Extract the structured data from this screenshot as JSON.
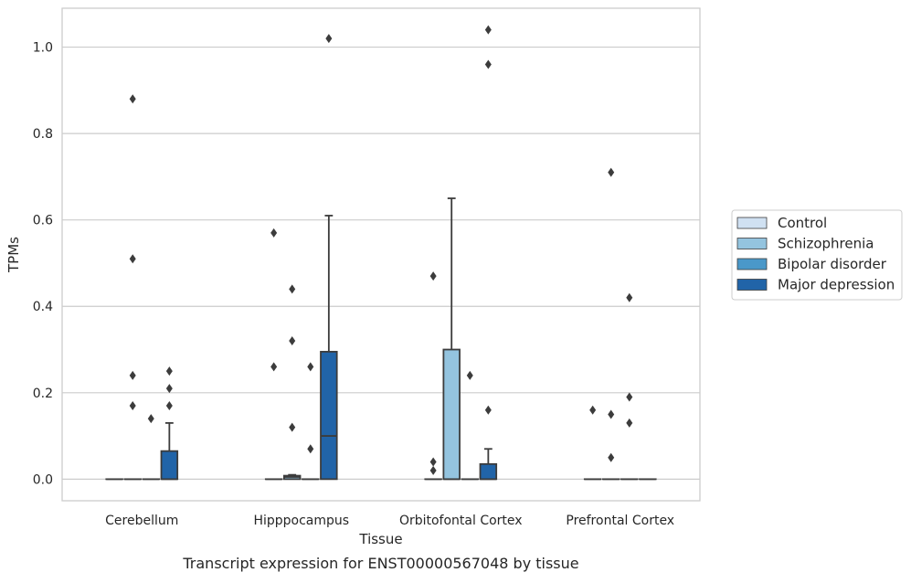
{
  "chart_data": {
    "type": "box",
    "title": "",
    "caption": "Transcript expression for ENST00000567048 by tissue",
    "xlabel": "Tissue",
    "ylabel": "TPMs",
    "ylim": [
      -0.05,
      1.09
    ],
    "yticks": [
      "0.0",
      "0.2",
      "0.4",
      "0.6",
      "0.8",
      "1.0"
    ],
    "grid": "horizontal",
    "legend_position": "right",
    "categories": [
      "Cerebellum",
      "Hipppocampus",
      "Orbitofontal Cortex",
      "Prefrontal Cortex"
    ],
    "series": [
      {
        "name": "Control",
        "color": "#d0e1f2"
      },
      {
        "name": "Schizophrenia",
        "color": "#94c4df"
      },
      {
        "name": "Bipolar disorder",
        "color": "#4a98c9"
      },
      {
        "name": "Major depression",
        "color": "#2164a8"
      }
    ],
    "boxes": [
      {
        "category": "Cerebellum",
        "series": "Control",
        "min": 0,
        "q1": 0,
        "median": 0,
        "q3": 0,
        "max": 0,
        "outliers": []
      },
      {
        "category": "Cerebellum",
        "series": "Schizophrenia",
        "min": 0,
        "q1": 0,
        "median": 0,
        "q3": 0,
        "max": 0,
        "outliers": [
          0.17,
          0.24,
          0.51,
          0.88
        ]
      },
      {
        "category": "Cerebellum",
        "series": "Bipolar disorder",
        "min": 0,
        "q1": 0,
        "median": 0,
        "q3": 0,
        "max": 0,
        "outliers": [
          0.14
        ]
      },
      {
        "category": "Cerebellum",
        "series": "Major depression",
        "min": 0,
        "q1": 0,
        "median": 0,
        "q3": 0.065,
        "max": 0.13,
        "outliers": [
          0.17,
          0.21,
          0.25
        ]
      },
      {
        "category": "Hipppocampus",
        "series": "Control",
        "min": 0,
        "q1": 0,
        "median": 0,
        "q3": 0,
        "max": 0,
        "outliers": [
          0.26,
          0.57
        ]
      },
      {
        "category": "Hipppocampus",
        "series": "Schizophrenia",
        "min": 0,
        "q1": 0,
        "median": 0.005,
        "q3": 0.008,
        "max": 0.01,
        "outliers": [
          0.12,
          0.32,
          0.44
        ]
      },
      {
        "category": "Hipppocampus",
        "series": "Bipolar disorder",
        "min": 0,
        "q1": 0,
        "median": 0,
        "q3": 0,
        "max": 0,
        "outliers": [
          0.07,
          0.26
        ]
      },
      {
        "category": "Hipppocampus",
        "series": "Major depression",
        "min": 0,
        "q1": 0,
        "median": 0.1,
        "q3": 0.295,
        "max": 0.61,
        "outliers": [
          1.02
        ]
      },
      {
        "category": "Orbitofontal Cortex",
        "series": "Control",
        "min": 0,
        "q1": 0,
        "median": 0,
        "q3": 0,
        "max": 0,
        "outliers": [
          0.02,
          0.04,
          0.47
        ]
      },
      {
        "category": "Orbitofontal Cortex",
        "series": "Schizophrenia",
        "min": 0,
        "q1": 0,
        "median": 0,
        "q3": 0.3,
        "max": 0.65,
        "outliers": []
      },
      {
        "category": "Orbitofontal Cortex",
        "series": "Bipolar disorder",
        "min": 0,
        "q1": 0,
        "median": 0,
        "q3": 0,
        "max": 0,
        "outliers": [
          0.24
        ]
      },
      {
        "category": "Orbitofontal Cortex",
        "series": "Major depression",
        "min": 0,
        "q1": 0,
        "median": 0,
        "q3": 0.035,
        "max": 0.07,
        "outliers": [
          0.16,
          0.96,
          1.04
        ]
      },
      {
        "category": "Prefrontal Cortex",
        "series": "Control",
        "min": 0,
        "q1": 0,
        "median": 0,
        "q3": 0,
        "max": 0,
        "outliers": [
          0.16
        ]
      },
      {
        "category": "Prefrontal Cortex",
        "series": "Schizophrenia",
        "min": 0,
        "q1": 0,
        "median": 0,
        "q3": 0,
        "max": 0,
        "outliers": [
          0.05,
          0.15,
          0.71
        ]
      },
      {
        "category": "Prefrontal Cortex",
        "series": "Bipolar disorder",
        "min": 0,
        "q1": 0,
        "median": 0,
        "q3": 0,
        "max": 0,
        "outliers": [
          0.13,
          0.19,
          0.42
        ]
      },
      {
        "category": "Prefrontal Cortex",
        "series": "Major depression",
        "min": 0,
        "q1": 0,
        "median": 0,
        "q3": 0,
        "max": 0,
        "outliers": []
      }
    ]
  }
}
